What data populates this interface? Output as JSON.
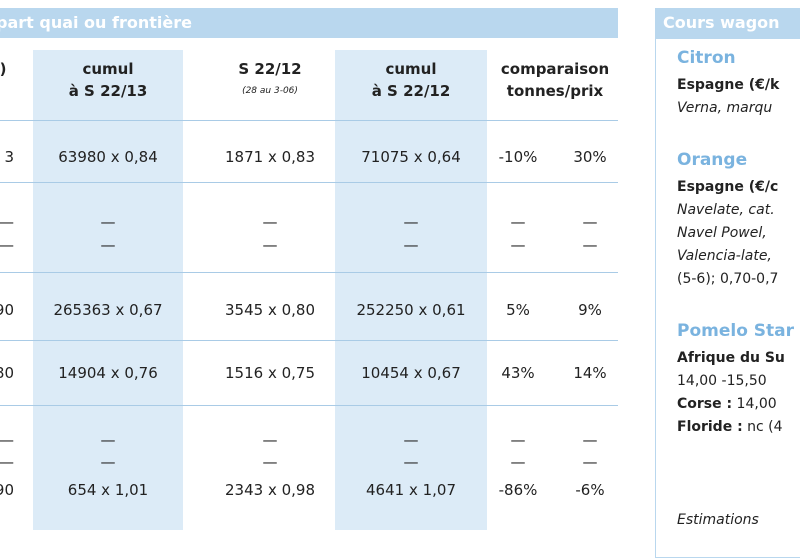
{
  "table": {
    "title": "part quai ou frontière",
    "columns": [
      {
        "lines": [
          ")"
        ]
      },
      {
        "lines": [
          "cumul",
          "à S 22/13"
        ]
      },
      {
        "lines": [
          "S 22/12",
          "(28 au 3-06)"
        ]
      },
      {
        "lines": [
          "cumul",
          "à S 22/12"
        ]
      },
      {
        "lines": [
          "comparaison",
          "tonnes/prix"
        ]
      }
    ],
    "rows": [
      [
        "3",
        "63980 x 0,84",
        "1871 x 0,83",
        "71075 x 0,64",
        "-10%",
        "30%"
      ],
      [
        "—",
        "—",
        "—",
        "—",
        "—",
        "—"
      ],
      [
        "—",
        "—",
        "—",
        "—",
        "—",
        "—"
      ],
      [
        "90",
        "265363 x 0,67",
        "3545 x 0,80",
        "252250 x 0,61",
        "5%",
        "9%"
      ],
      [
        "80",
        "14904 x 0,76",
        "1516 x 0,75",
        "10454 x 0,67",
        "43%",
        "14%"
      ],
      [
        "—",
        "—",
        "—",
        "—",
        "—",
        "—"
      ],
      [
        "—",
        "—",
        "—",
        "—",
        "—",
        "—"
      ],
      [
        "90",
        "654 x 1,01",
        "2343 x 0,98",
        "4641 x 1,07",
        "-86%",
        "-6%"
      ]
    ]
  },
  "sidebar": {
    "title": "Cours wagon",
    "sections": [
      {
        "title": "Citron",
        "lines": [
          [
            {
              "text": "Espagne (€/k",
              "style": "bold"
            }
          ],
          [
            {
              "text": "Verna, marqu",
              "style": "italic"
            }
          ]
        ]
      },
      {
        "title": "Orange",
        "lines": [
          [
            {
              "text": "Espagne (€/c",
              "style": "bold"
            }
          ],
          [
            {
              "text": "Navelate, cat.",
              "style": "italic"
            }
          ],
          [
            {
              "text": "Navel Powel,",
              "style": "italic"
            }
          ],
          [
            {
              "text": "Valencia-late,",
              "style": "italic"
            }
          ],
          [
            {
              "text": "(5-6); 0,70-0,7",
              "style": "normal"
            }
          ]
        ]
      },
      {
        "title": "Pomelo Star",
        "lines": [
          [
            {
              "text": "Afrique du Su",
              "style": "bold"
            }
          ],
          [
            {
              "text": "14,00 -15,50",
              "style": "normal"
            }
          ],
          [
            {
              "text": "Corse :",
              "style": "bold"
            },
            {
              "text": " 14,00",
              "style": "normal"
            }
          ],
          [
            {
              "text": "Floride :",
              "style": "bold"
            },
            {
              "text": " nc (4",
              "style": "normal"
            }
          ]
        ]
      }
    ],
    "note": "Estimations"
  }
}
